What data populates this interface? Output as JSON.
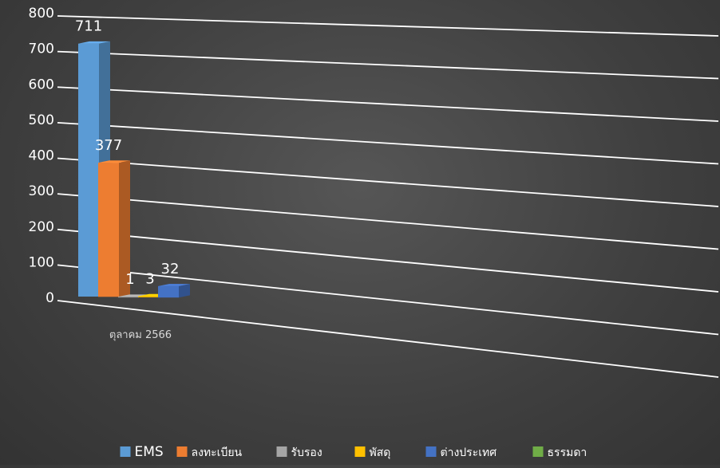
{
  "chart_data": {
    "type": "bar",
    "categories": [
      "ตุลาคม 2566"
    ],
    "ylim": [
      0,
      800
    ],
    "yticks": [
      0,
      100,
      200,
      300,
      400,
      500,
      600,
      700,
      800
    ],
    "series": [
      {
        "name": "EMS",
        "values": [
          711
        ],
        "color": "#5b9bd5"
      },
      {
        "name": "ลงทะเบียน",
        "values": [
          377
        ],
        "color": "#ed7d31"
      },
      {
        "name": "รับรอง",
        "values": [
          1
        ],
        "color": "#a5a5a5"
      },
      {
        "name": "พัสดุ",
        "values": [
          3
        ],
        "color": "#ffc000"
      },
      {
        "name": "ต่างประเทศ",
        "values": [
          32
        ],
        "color": "#4472c4"
      },
      {
        "name": "ธรรมดา",
        "values": [
          0
        ],
        "color": "#70ad47"
      }
    ],
    "grid": true,
    "legend": "bottom",
    "data_labels": true
  }
}
